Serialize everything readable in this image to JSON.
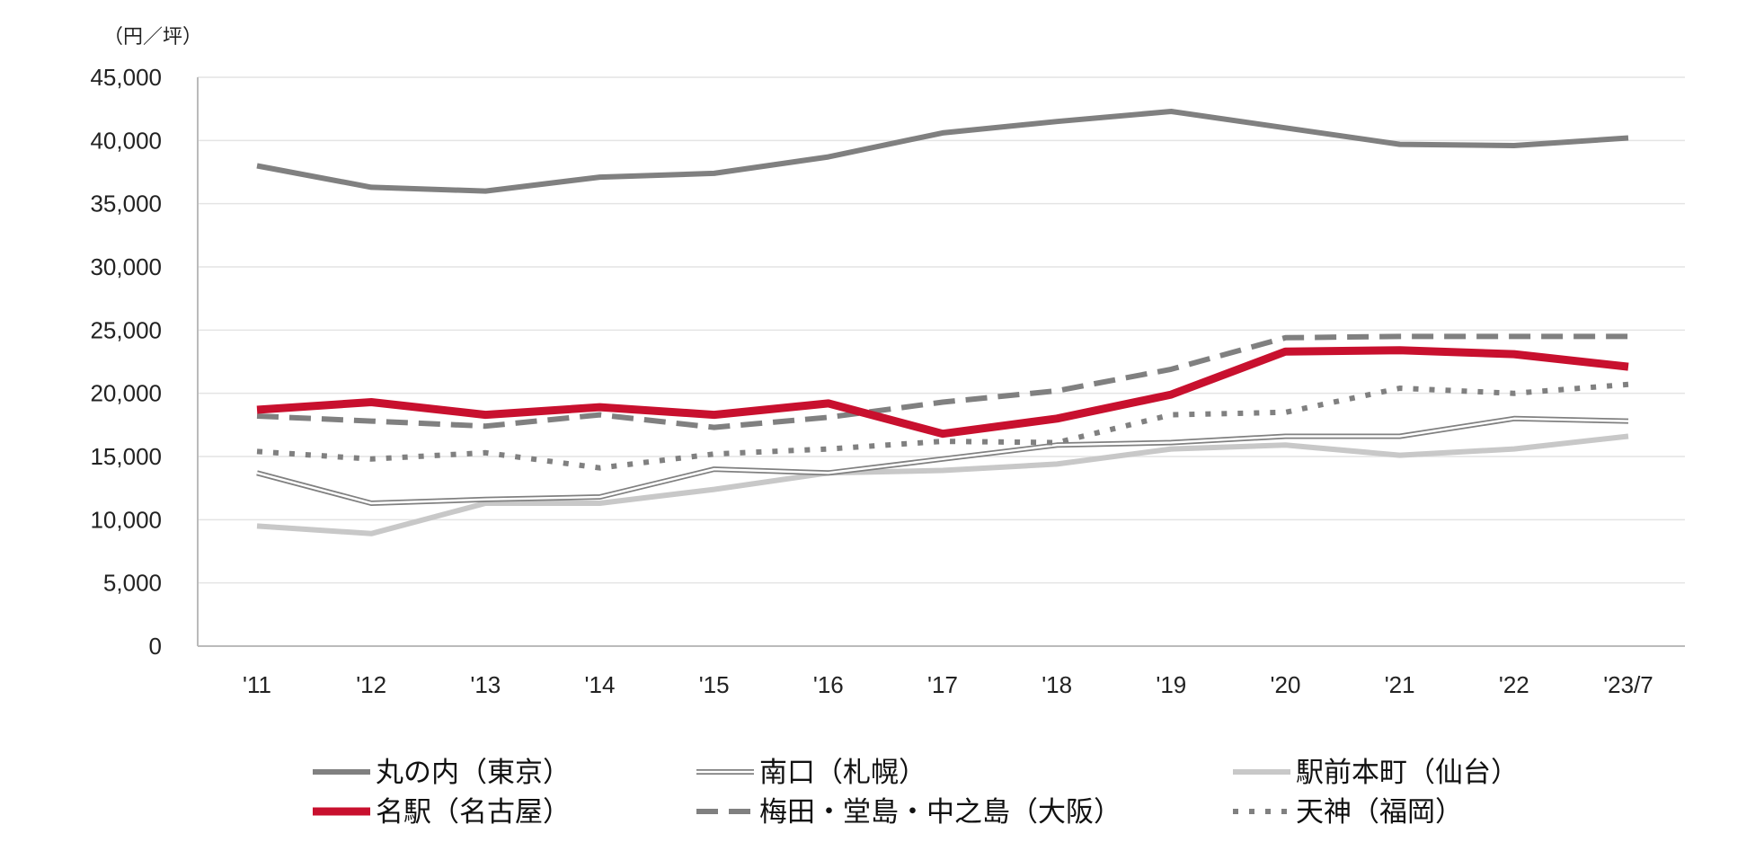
{
  "chart_data": {
    "type": "line",
    "unit_label": "（円／坪）",
    "categories": [
      "'11",
      "'12",
      "'13",
      "'14",
      "'15",
      "'16",
      "'17",
      "'18",
      "'19",
      "'20",
      "'21",
      "'22",
      "'23/7"
    ],
    "y_ticks": [
      "0",
      "5,000",
      "10,000",
      "15,000",
      "20,000",
      "25,000",
      "30,000",
      "35,000",
      "40,000",
      "45,000"
    ],
    "ylim": [
      0,
      45000
    ],
    "grid": true,
    "legend_position": "bottom",
    "series": [
      {
        "name": "丸の内（東京）",
        "style": "thick-solid",
        "color": "#808080",
        "values": [
          38000,
          36300,
          36000,
          37100,
          37400,
          38700,
          40600,
          41500,
          42300,
          41000,
          39700,
          39600,
          40200
        ]
      },
      {
        "name": "南口（札幌）",
        "style": "double",
        "color": "#808080",
        "values": [
          13700,
          11300,
          11600,
          11800,
          14000,
          13700,
          14800,
          15900,
          16100,
          16600,
          16600,
          18000,
          17800
        ]
      },
      {
        "name": "駅前本町（仙台）",
        "style": "light-solid",
        "color": "#c8c8c8",
        "values": [
          9500,
          8900,
          11300,
          11300,
          12400,
          13700,
          13900,
          14400,
          15600,
          15900,
          15100,
          15600,
          16600
        ]
      },
      {
        "name": "名駅（名古屋）",
        "style": "red-thick",
        "color": "#c8102e",
        "values": [
          18700,
          19300,
          18300,
          18900,
          18300,
          19200,
          16800,
          18000,
          19900,
          23300,
          23400,
          23100,
          22100
        ]
      },
      {
        "name": "梅田・堂島・中之島（大阪）",
        "style": "dashed",
        "color": "#808080",
        "values": [
          18200,
          17800,
          17400,
          18300,
          17300,
          18100,
          19300,
          20200,
          21900,
          24400,
          24500,
          24500,
          24500
        ]
      },
      {
        "name": "天神（福岡）",
        "style": "dotted",
        "color": "#808080",
        "values": [
          15400,
          14800,
          15300,
          14100,
          15200,
          15600,
          16200,
          16100,
          18300,
          18500,
          20400,
          20000,
          20700
        ]
      }
    ]
  }
}
